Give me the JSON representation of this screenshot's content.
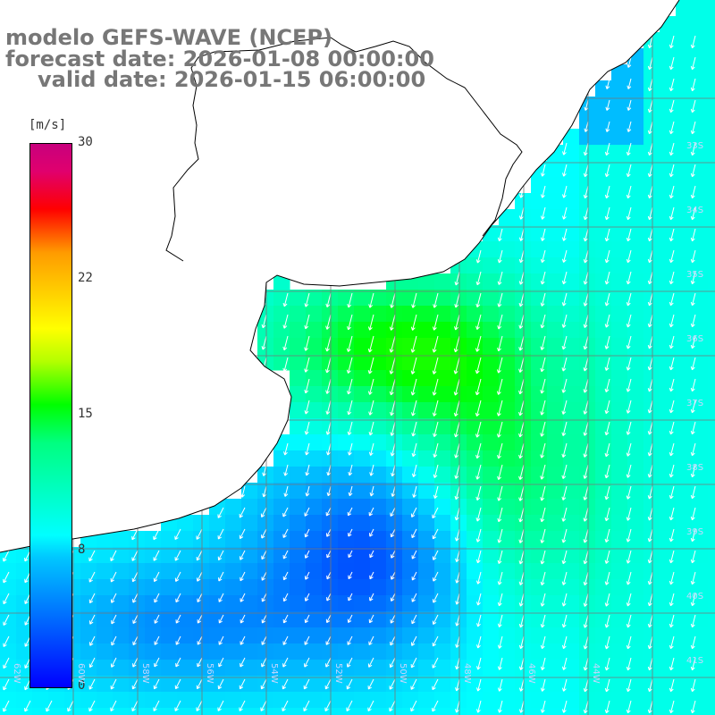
{
  "title": {
    "model": "modelo GEFS-WAVE (NCEP)",
    "forecast": "forecast date: 2026-01-08 00:00:00",
    "valid": "valid date: 2026-01-15 06:00:00"
  },
  "colorbar": {
    "unit": "[m/s]",
    "ticks": [
      "30",
      "22",
      "15",
      "8",
      "0"
    ],
    "tick_values": [
      30,
      22,
      15,
      8,
      0
    ],
    "range": [
      0,
      30
    ]
  },
  "map_labels": {
    "longitudes": [
      "62W",
      "60W",
      "58W",
      "56W",
      "54W",
      "52W",
      "50W",
      "48W",
      "46W",
      "44W"
    ],
    "latitudes": [
      "33S",
      "34S",
      "35S",
      "36S",
      "37S",
      "38S",
      "39S",
      "40S",
      "41S"
    ]
  },
  "colors": {
    "land": "#ffffff",
    "coast": "#000000",
    "grid": "#777777",
    "arrows": "#ffffff"
  }
}
